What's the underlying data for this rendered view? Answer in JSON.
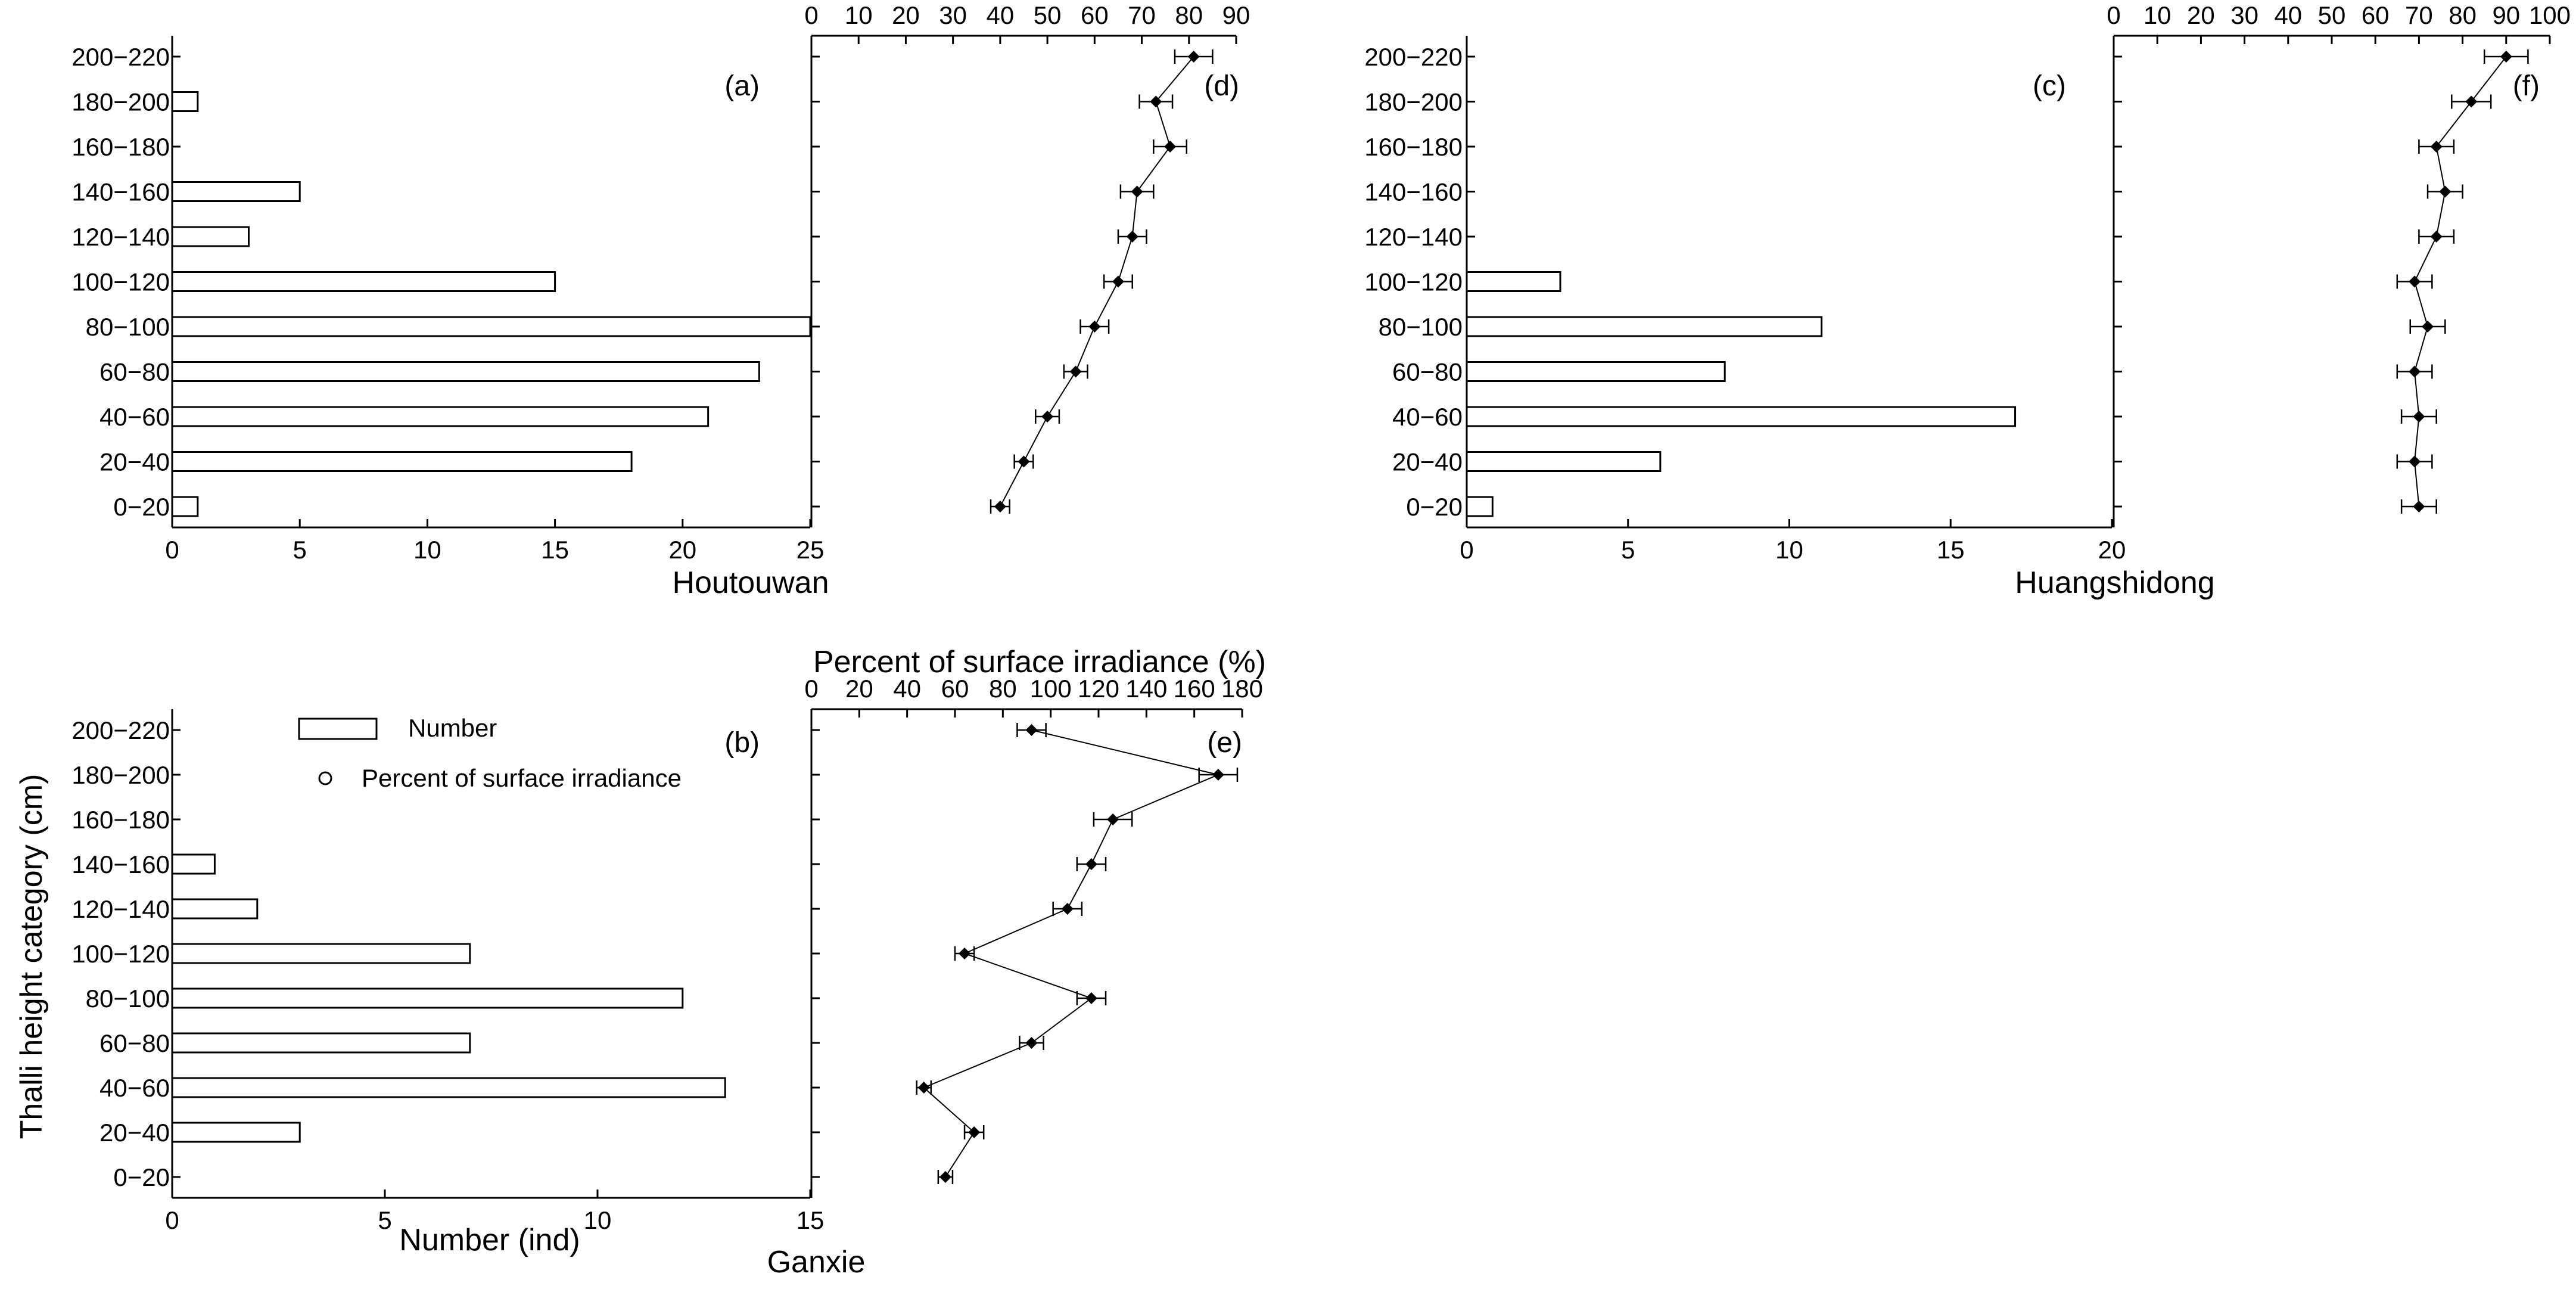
{
  "figure": {
    "y_axis_title": "Thalli height category (cm)",
    "top_axis_title": "Percent of surface irradiance (%)",
    "legend": {
      "number_label": "Number",
      "percent_label": "Percent of surface irradiance"
    }
  },
  "chart_data": [
    {
      "id": "a",
      "panel_label": "(a)",
      "site_label": "Houtouwan",
      "type": "bar",
      "orientation": "horizontal",
      "categories": [
        "0−20",
        "20−40",
        "40−60",
        "60−80",
        "80−100",
        "100−120",
        "120−140",
        "140−160",
        "160−180",
        "180−200",
        "200−220"
      ],
      "values": [
        1,
        18,
        21,
        23,
        25,
        15,
        3,
        5,
        0,
        1,
        0
      ],
      "xlabel": "",
      "xlim": [
        0,
        25
      ],
      "xticks": [
        0,
        5,
        10,
        15,
        20,
        25
      ],
      "bar_color": "#ffffff",
      "edge_color": "#000000"
    },
    {
      "id": "d",
      "panel_label": "(d)",
      "type": "line",
      "orientation": "horizontal",
      "categories": [
        "0−20",
        "20−40",
        "40−60",
        "60−80",
        "80−100",
        "100−120",
        "120−140",
        "140−160",
        "160−180",
        "180−200",
        "200−220"
      ],
      "values": [
        40,
        45,
        50,
        56,
        60,
        65,
        68,
        69,
        76,
        73,
        81
      ],
      "errors": [
        2,
        2,
        2.5,
        2.5,
        3,
        3,
        3,
        3.5,
        3.5,
        3.5,
        4
      ],
      "xlim": [
        0,
        90
      ],
      "xticks": [
        0,
        10,
        20,
        30,
        40,
        50,
        60,
        70,
        80,
        90
      ],
      "marker": "diamond"
    },
    {
      "id": "c",
      "panel_label": "(c)",
      "site_label": "Huangshidong",
      "type": "bar",
      "orientation": "horizontal",
      "categories": [
        "0−20",
        "20−40",
        "40−60",
        "60−80",
        "80−100",
        "100−120",
        "120−140",
        "140−160",
        "160−180",
        "180−200",
        "200−220"
      ],
      "values": [
        0.8,
        6,
        17,
        8,
        11,
        2.9,
        0,
        0,
        0,
        0,
        0
      ],
      "xlabel": "",
      "xlim": [
        0,
        20
      ],
      "xticks": [
        0,
        5,
        10,
        15,
        20
      ],
      "bar_color": "#ffffff",
      "edge_color": "#000000"
    },
    {
      "id": "f",
      "panel_label": "(f)",
      "type": "line",
      "orientation": "horizontal",
      "categories": [
        "0−20",
        "20−40",
        "40−60",
        "60−80",
        "80−100",
        "100−120",
        "120−140",
        "140−160",
        "160−180",
        "180−200",
        "200−220"
      ],
      "values": [
        70,
        69,
        70,
        69,
        72,
        69,
        74,
        76,
        74,
        82,
        90
      ],
      "errors": [
        4,
        4,
        4,
        4,
        4,
        4,
        4,
        4,
        4,
        4.5,
        5
      ],
      "xlim": [
        0,
        100
      ],
      "xticks": [
        0,
        10,
        20,
        30,
        40,
        50,
        60,
        70,
        80,
        90,
        100
      ],
      "marker": "diamond"
    },
    {
      "id": "b",
      "panel_label": "(b)",
      "site_label": "Ganxie",
      "type": "bar",
      "orientation": "horizontal",
      "categories": [
        "0−20",
        "20−40",
        "40−60",
        "60−80",
        "80−100",
        "100−120",
        "120−140",
        "140−160",
        "160−180",
        "180−200",
        "200−220"
      ],
      "values": [
        0,
        3,
        13,
        7,
        12,
        7,
        2,
        1,
        0,
        0,
        0
      ],
      "xlabel": "Number (ind)",
      "xlim": [
        0,
        15
      ],
      "xticks": [
        0,
        5,
        10,
        15
      ],
      "bar_color": "#ffffff",
      "edge_color": "#000000"
    },
    {
      "id": "e",
      "panel_label": "(e)",
      "type": "line",
      "orientation": "horizontal",
      "categories": [
        "0−20",
        "20−40",
        "40−60",
        "60−80",
        "80−100",
        "100−120",
        "120−140",
        "140−160",
        "160−180",
        "180−200",
        "200−220"
      ],
      "values": [
        56,
        68,
        47,
        92,
        117,
        64,
        107,
        117,
        126,
        170,
        92
      ],
      "errors": [
        3,
        4,
        3,
        5,
        6,
        4,
        6,
        6,
        8,
        8,
        6
      ],
      "xlim": [
        0,
        180
      ],
      "xticks": [
        0,
        20,
        40,
        60,
        80,
        100,
        120,
        140,
        160,
        180
      ],
      "marker": "diamond"
    }
  ]
}
